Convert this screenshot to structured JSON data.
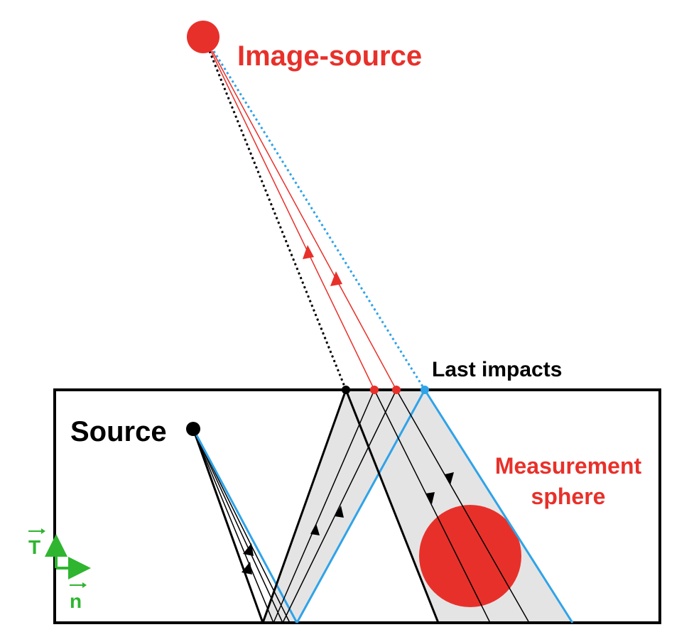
{
  "labels": {
    "image_source": "Image-source",
    "last_impacts": "Last impacts",
    "source": "Source",
    "measurement_line1": "Measurement",
    "measurement_line2": "sphere",
    "axis_t": "T",
    "axis_n": "n"
  },
  "colors": {
    "red": "#e8302a",
    "blue": "#2fa3e8",
    "black": "#000000",
    "green": "#2fb52f",
    "beam_fill": "#e4e4e4"
  }
}
